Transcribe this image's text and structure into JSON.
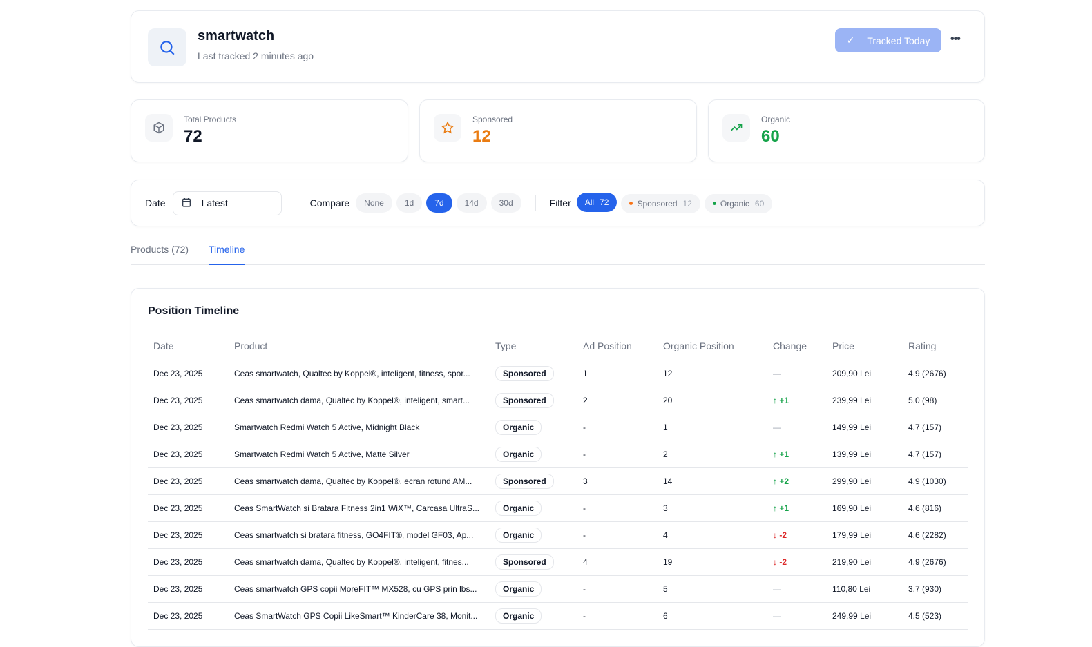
{
  "header": {
    "keyword": "smartwatch",
    "subtitle": "Last tracked 2 minutes ago",
    "tracked_label": "Tracked Today",
    "more": "•••"
  },
  "stats": [
    {
      "label": "Total Products",
      "value": "72",
      "color": "#111827"
    },
    {
      "label": "Sponsored",
      "value": "12",
      "color": "#ea7c12"
    },
    {
      "label": "Organic",
      "value": "60",
      "color": "#16a34a"
    }
  ],
  "filters": {
    "date_label": "Date",
    "date_value": "Latest",
    "compare_label": "Compare",
    "compare_options": [
      "None",
      "1d",
      "7d",
      "14d",
      "30d"
    ],
    "compare_selected": "7d",
    "filter_label": "Filter",
    "filter_options": [
      {
        "label": "All",
        "count": "72",
        "active": true
      },
      {
        "label": "Sponsored",
        "count": "12",
        "dot": "#f97316"
      },
      {
        "label": "Organic",
        "count": "60",
        "dot": "#16a34a"
      }
    ]
  },
  "tabs": [
    {
      "label": "Products (72)"
    },
    {
      "label": "Timeline",
      "active": true
    }
  ],
  "timeline": {
    "title": "Position Timeline",
    "columns": [
      "Date",
      "Product",
      "Type",
      "Ad Position",
      "Organic Position",
      "Change",
      "Price",
      "Rating"
    ],
    "rows": [
      [
        "Dec 23, 2025",
        "Ceas smartwatch, Qualtec by Koppel®, inteligent, fitness, spor...",
        "Sponsored",
        "1",
        "12",
        "—",
        "209,90 Lei",
        "4.9 (2676)"
      ],
      [
        "Dec 23, 2025",
        "Ceas smartwatch dama, Qualtec by Koppel®, inteligent, smart...",
        "Sponsored",
        "2",
        "20",
        "+1",
        "239,99 Lei",
        "5.0 (98)"
      ],
      [
        "Dec 23, 2025",
        "Smartwatch Redmi Watch 5 Active, Midnight Black",
        "Organic",
        "-",
        "1",
        "—",
        "149,99 Lei",
        "4.7 (157)"
      ],
      [
        "Dec 23, 2025",
        "Smartwatch Redmi Watch 5 Active, Matte Silver",
        "Organic",
        "-",
        "2",
        "+1",
        "139,99 Lei",
        "4.7 (157)"
      ],
      [
        "Dec 23, 2025",
        "Ceas smartwatch dama, Qualtec by Koppel®, ecran rotund AM...",
        "Sponsored",
        "3",
        "14",
        "+2",
        "299,90 Lei",
        "4.9 (1030)"
      ],
      [
        "Dec 23, 2025",
        "Ceas SmartWatch si Bratara Fitness 2in1 WiX™, Carcasa UltraS...",
        "Organic",
        "-",
        "3",
        "+1",
        "169,90 Lei",
        "4.6 (816)"
      ],
      [
        "Dec 23, 2025",
        "Ceas smartwatch si bratara fitness, GO4FIT®, model GF03, Ap...",
        "Organic",
        "-",
        "4",
        "-2",
        "179,99 Lei",
        "4.6 (2282)"
      ],
      [
        "Dec 23, 2025",
        "Ceas smartwatch dama, Qualtec by Koppel®, inteligent, fitnes...",
        "Sponsored",
        "4",
        "19",
        "-2",
        "219,90 Lei",
        "4.9 (2676)"
      ],
      [
        "Dec 23, 2025",
        "Ceas smartwatch GPS copii MoreFIT™ MX528, cu GPS prin lbs...",
        "Organic",
        "-",
        "5",
        "—",
        "110,80 Lei",
        "3.7 (930)"
      ],
      [
        "Dec 23, 2025",
        "Ceas SmartWatch GPS Copii LikeSmart™ KinderCare 38, Monit...",
        "Organic",
        "-",
        "6",
        "—",
        "249,99 Lei",
        "4.5 (523)"
      ]
    ]
  }
}
